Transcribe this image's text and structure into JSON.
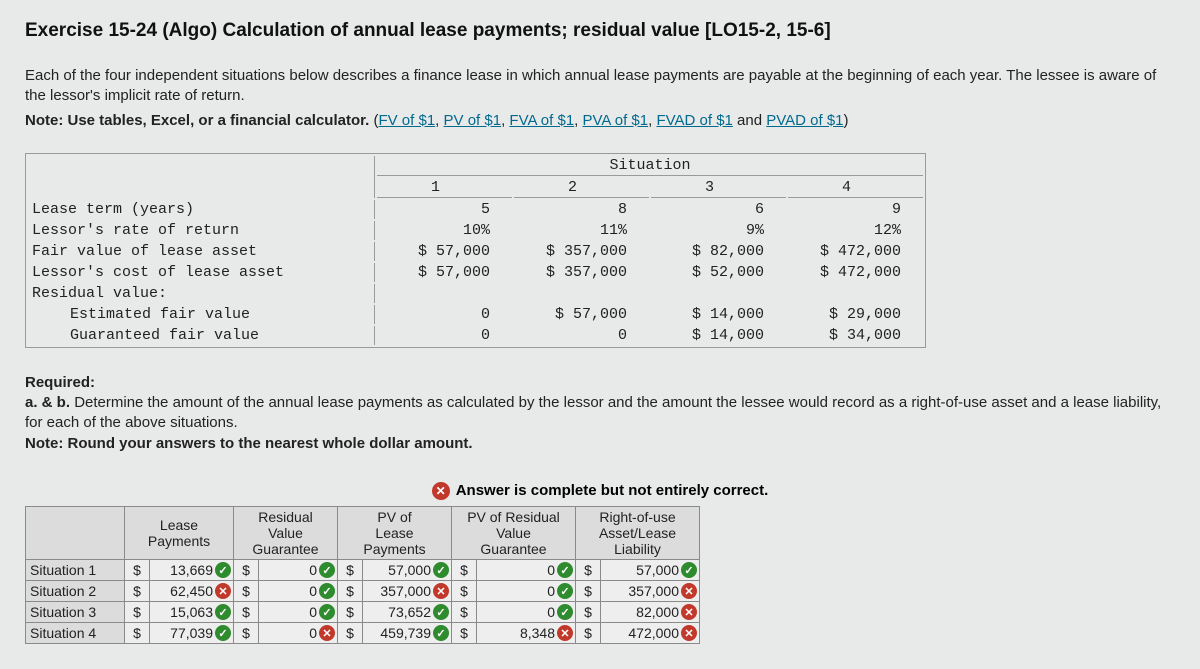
{
  "title": "Exercise 15-24 (Algo) Calculation of annual lease payments; residual value [LO15-2, 15-6]",
  "intro": {
    "p1": "Each of the four independent situations below describes a finance lease in which annual lease payments are payable at the beginning of each year. The lessee is aware of the lessor's implicit rate of return.",
    "note_prefix": "Note: Use tables, Excel, or a financial calculator.",
    "links": {
      "fv": "FV of $1",
      "pv": "PV of $1",
      "fva": "FVA of $1",
      "pva": "PVA of $1",
      "fvad": "FVAD of $1",
      "pvad": "PVAD of $1"
    }
  },
  "situation_table": {
    "caption": "Situation",
    "col_nums": [
      "1",
      "2",
      "3",
      "4"
    ],
    "rows": {
      "lease_term": {
        "label": "Lease term (years)",
        "v": [
          "5",
          "8",
          "6",
          "9"
        ]
      },
      "rate": {
        "label": "Lessor's rate of return",
        "v": [
          "10%",
          "11%",
          "9%",
          "12%"
        ]
      },
      "fair_value": {
        "label": "Fair value of lease asset",
        "v": [
          "$ 57,000",
          "$ 357,000",
          "$ 82,000",
          "$ 472,000"
        ]
      },
      "cost": {
        "label": "Lessor's cost of lease asset",
        "v": [
          "$ 57,000",
          "$ 357,000",
          "$ 52,000",
          "$ 472,000"
        ]
      },
      "res_label": {
        "label": "Residual value:"
      },
      "est_fv": {
        "label": "Estimated fair value",
        "v": [
          "0",
          "$ 57,000",
          "$ 14,000",
          "$ 29,000"
        ]
      },
      "guar_fv": {
        "label": "Guaranteed fair value",
        "v": [
          "0",
          "0",
          "$ 14,000",
          "$ 34,000"
        ]
      }
    }
  },
  "required": {
    "heading": "Required:",
    "ab": "a. & b. ",
    "body": "Determine the amount of the annual lease payments as calculated by the lessor and the amount the lessee would record as a right-of-use asset and a lease liability, for each of the above situations.",
    "note": "Note: Round your answers to the nearest whole dollar amount."
  },
  "status_banner": "Answer is complete but not entirely correct.",
  "answer": {
    "headers": {
      "lease": "Lease\nPayments",
      "residual": "Residual\nValue\nGuarantee",
      "pv_lease": "PV of\nLease\nPayments",
      "pv_res": "PV of Residual\nValue\nGuarantee",
      "rou": "Right-of-use\nAsset/Lease\nLiability"
    },
    "rows": [
      {
        "label": "Situation 1",
        "lease": {
          "v": "13,669",
          "ok": true
        },
        "res": {
          "v": "0",
          "ok": true
        },
        "pvl": {
          "v": "57,000",
          "ok": true
        },
        "pvr": {
          "v": "0",
          "ok": true
        },
        "rou": {
          "v": "57,000",
          "ok": true
        }
      },
      {
        "label": "Situation 2",
        "lease": {
          "v": "62,450",
          "ok": false
        },
        "res": {
          "v": "0",
          "ok": true
        },
        "pvl": {
          "v": "357,000",
          "ok": false
        },
        "pvr": {
          "v": "0",
          "ok": true
        },
        "rou": {
          "v": "357,000",
          "ok": false
        }
      },
      {
        "label": "Situation 3",
        "lease": {
          "v": "15,063",
          "ok": true
        },
        "res": {
          "v": "0",
          "ok": true
        },
        "pvl": {
          "v": "73,652",
          "ok": true
        },
        "pvr": {
          "v": "0",
          "ok": true
        },
        "rou": {
          "v": "82,000",
          "ok": false
        }
      },
      {
        "label": "Situation 4",
        "lease": {
          "v": "77,039",
          "ok": true
        },
        "res": {
          "v": "0",
          "ok": false
        },
        "pvl": {
          "v": "459,739",
          "ok": true
        },
        "pvr": {
          "v": "8,348",
          "ok": false
        },
        "rou": {
          "v": "472,000",
          "ok": false
        }
      }
    ],
    "currency": "$",
    "colors": {
      "ok": "#2e8b2e",
      "bad": "#c1392b",
      "header_bg": "#dcdcdc",
      "cell_bg": "#eeeeee",
      "border": "#8a8a8a"
    }
  }
}
